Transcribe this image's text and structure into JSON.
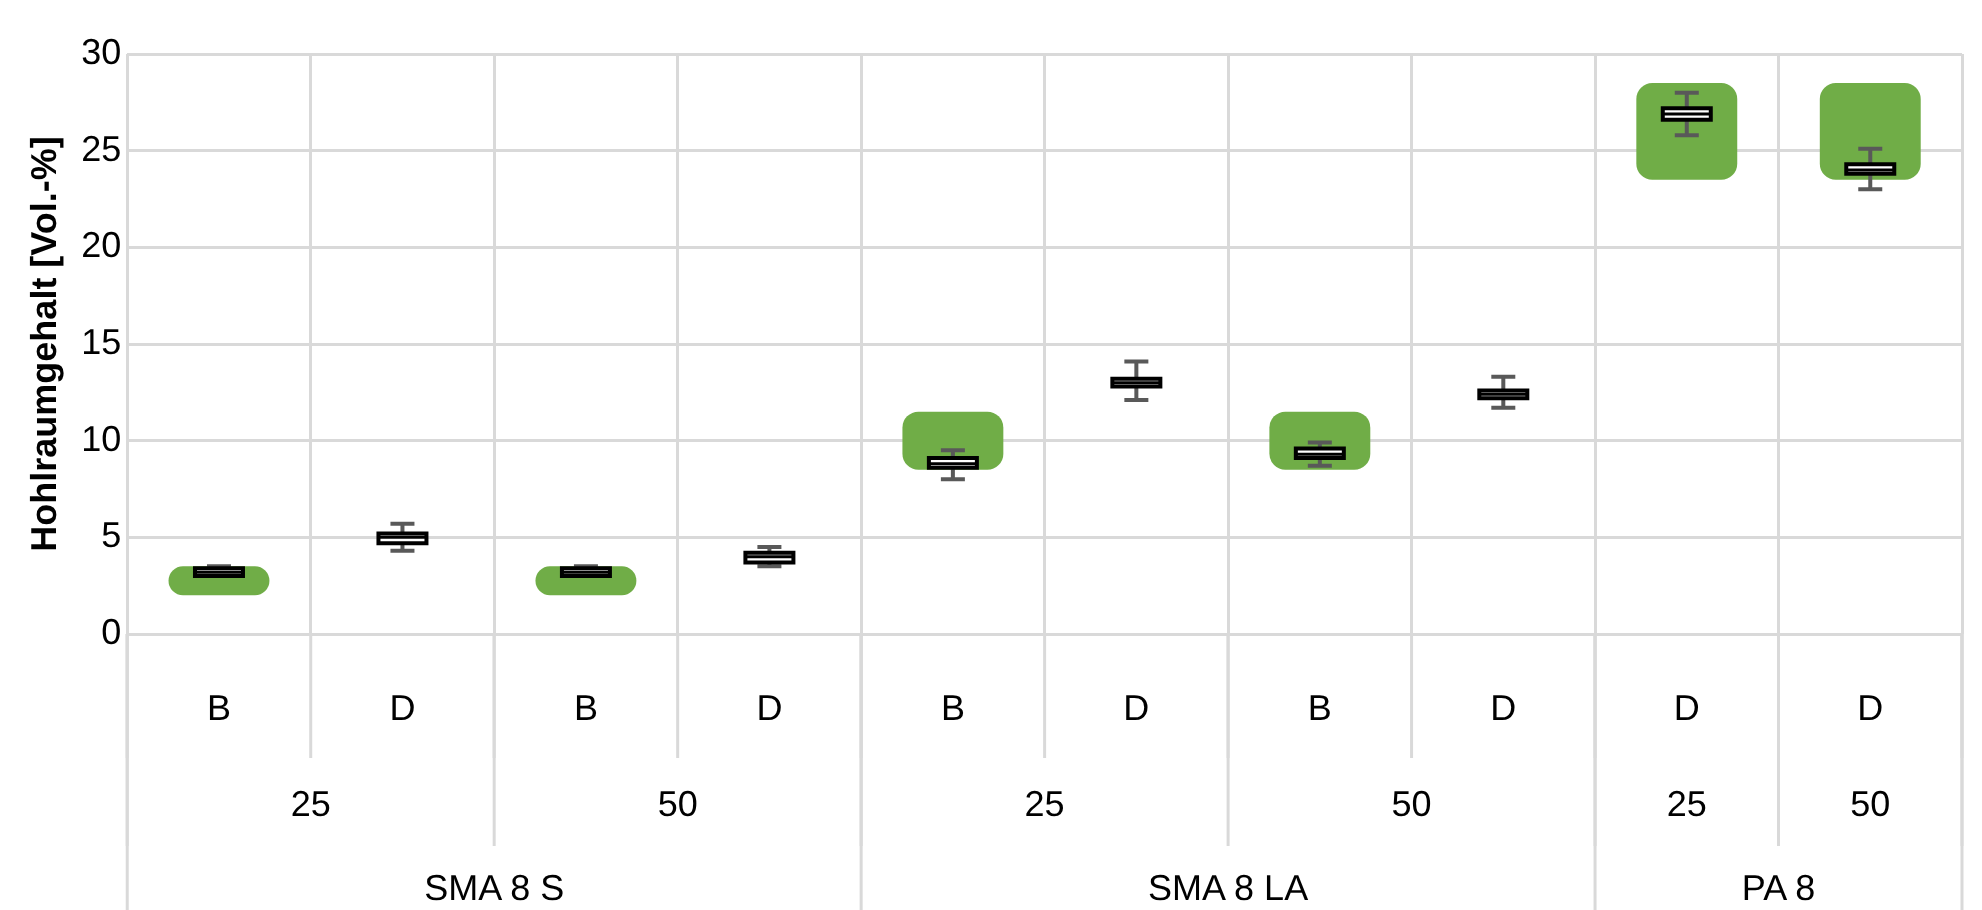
{
  "chart_data": {
    "type": "box",
    "ylabel": "Hohlraumgehalt [Vol.-%]",
    "categories": [
      "B",
      "D",
      "B",
      "D",
      "B",
      "D",
      "B",
      "D",
      "D",
      "D"
    ],
    "annotations": [
      "25",
      "50",
      "25",
      "50",
      "25",
      "50",
      "SMA 8 S",
      "SMA 8 LA",
      "PA 8"
    ],
    "ylim": [
      0,
      30
    ],
    "yticks": [
      0,
      5,
      10,
      15,
      20,
      25,
      30
    ],
    "grid": true,
    "series": [
      {
        "type": "bar",
        "color": "#70ad47",
        "base": [
          2,
          null,
          2,
          null,
          8.5,
          null,
          8.5,
          null,
          23.5,
          23.5
        ],
        "values": [
          1.5,
          null,
          1.5,
          null,
          3,
          null,
          3,
          null,
          5,
          5
        ]
      },
      {
        "color": "#ffffff",
        "boxes": [
          {
            "low": 3.0,
            "q1": 3.0,
            "median": 3.2,
            "q3": 3.4,
            "high": 3.5
          },
          {
            "low": 4.3,
            "q1": 4.7,
            "median": 5.0,
            "q3": 5.2,
            "high": 5.7
          },
          {
            "low": 3.0,
            "q1": 3.0,
            "median": 3.2,
            "q3": 3.4,
            "high": 3.5
          },
          {
            "low": 3.5,
            "q1": 3.7,
            "median": 4.0,
            "q3": 4.2,
            "high": 4.5
          },
          {
            "low": 8.0,
            "q1": 8.6,
            "median": 8.8,
            "q3": 9.1,
            "high": 9.5
          },
          {
            "low": 12.1,
            "q1": 12.8,
            "median": 13.0,
            "q3": 13.2,
            "high": 14.1
          },
          {
            "low": 8.7,
            "q1": 9.1,
            "median": 9.3,
            "q3": 9.6,
            "high": 9.9
          },
          {
            "low": 11.7,
            "q1": 12.2,
            "median": 12.4,
            "q3": 12.6,
            "high": 13.3
          },
          {
            "low": 25.8,
            "q1": 26.6,
            "median": 26.9,
            "q3": 27.2,
            "high": 28.0
          },
          {
            "low": 23.0,
            "q1": 23.8,
            "median": 24.0,
            "q3": 24.3,
            "high": 25.1
          }
        ]
      }
    ]
  }
}
